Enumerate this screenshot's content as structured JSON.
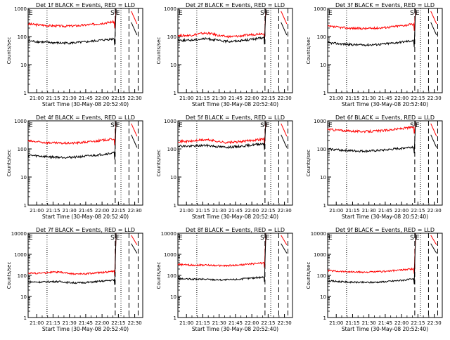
{
  "chart_data": [
    {
      "type": "line",
      "title": "Det 1f BLACK = Events, RED = LLD",
      "xlabel": "Start Time (30-May-08 20:52:40)",
      "ylabel": "Counts/sec",
      "yscale": "log",
      "ylim": [
        1,
        1000
      ],
      "yticks": [
        "1",
        "10",
        "100",
        "1000"
      ],
      "xticks": [
        "21:00",
        "21:15",
        "21:30",
        "21:45",
        "22:00",
        "22:15",
        "22:30"
      ],
      "markers": [
        "S",
        "E"
      ],
      "series": [
        {
          "name": "LLD",
          "color": "#ff0000",
          "level": 280,
          "bump": 1.0
        },
        {
          "name": "Events",
          "color": "#000000",
          "level": 70,
          "bump": 1.0
        }
      ]
    },
    {
      "type": "line",
      "title": "Det 2f BLACK = Events, RED = LLD",
      "xlabel": "Start Time (30-May-08 20:52:40)",
      "ylabel": "Counts/sec",
      "yscale": "log",
      "ylim": [
        1,
        1000
      ],
      "yticks": [
        "1",
        "10",
        "100",
        "1000"
      ],
      "xticks": [
        "21:00",
        "21:15",
        "21:30",
        "21:45",
        "22:00",
        "22:15",
        "22:30"
      ],
      "markers": [
        "S",
        "E"
      ],
      "series": [
        {
          "name": "LLD",
          "color": "#ff0000",
          "level": 110,
          "bump": 1.4
        },
        {
          "name": "Events",
          "color": "#000000",
          "level": 75,
          "bump": 1.3
        }
      ]
    },
    {
      "type": "line",
      "title": "Det 3f BLACK = Events, RED = LLD",
      "xlabel": "Start Time (30-May-08 20:52:40)",
      "ylabel": "Counts/sec",
      "yscale": "log",
      "ylim": [
        1,
        1000
      ],
      "yticks": [
        "1",
        "10",
        "100",
        "1000"
      ],
      "xticks": [
        "21:00",
        "21:15",
        "21:30",
        "21:45",
        "22:00",
        "22:15",
        "22:30"
      ],
      "markers": [
        "S",
        "E"
      ],
      "series": [
        {
          "name": "LLD",
          "color": "#ff0000",
          "level": 230,
          "bump": 1.0
        },
        {
          "name": "Events",
          "color": "#000000",
          "level": 60,
          "bump": 1.0
        }
      ]
    },
    {
      "type": "line",
      "title": "Det 4f BLACK = Events, RED = LLD",
      "xlabel": "Start Time (30-May-08 20:52:40)",
      "ylabel": "Counts/sec",
      "yscale": "log",
      "ylim": [
        1,
        1000
      ],
      "yticks": [
        "1",
        "10",
        "100",
        "1000"
      ],
      "xticks": [
        "21:00",
        "21:15",
        "21:30",
        "21:45",
        "22:00",
        "22:15",
        "22:30"
      ],
      "markers": [
        "S",
        "E"
      ],
      "series": [
        {
          "name": "LLD",
          "color": "#ff0000",
          "level": 190,
          "bump": 1.0
        },
        {
          "name": "Events",
          "color": "#000000",
          "level": 60,
          "bump": 1.0
        }
      ]
    },
    {
      "type": "line",
      "title": "Det 5f BLACK = Events, RED = LLD",
      "xlabel": "Start Time (30-May-08 20:52:40)",
      "ylabel": "Counts/sec",
      "yscale": "log",
      "ylim": [
        1,
        1000
      ],
      "yticks": [
        "1",
        "10",
        "100",
        "1000"
      ],
      "xticks": [
        "21:00",
        "21:15",
        "21:30",
        "21:45",
        "22:00",
        "22:15",
        "22:30"
      ],
      "markers": [
        "S",
        "E"
      ],
      "series": [
        {
          "name": "LLD",
          "color": "#ff0000",
          "level": 190,
          "bump": 1.3
        },
        {
          "name": "Events",
          "color": "#000000",
          "level": 130,
          "bump": 1.2
        }
      ]
    },
    {
      "type": "line",
      "title": "Det 6f BLACK = Events, RED = LLD",
      "xlabel": "Start Time (30-May-08 20:52:40)",
      "ylabel": "Counts/sec",
      "yscale": "log",
      "ylim": [
        1,
        1000
      ],
      "yticks": [
        "1",
        "10",
        "100",
        "1000"
      ],
      "xticks": [
        "21:00",
        "21:15",
        "21:30",
        "21:45",
        "22:00",
        "22:15",
        "22:30"
      ],
      "markers": [
        "S",
        "E"
      ],
      "series": [
        {
          "name": "LLD",
          "color": "#ff0000",
          "level": 500,
          "bump": 1.0
        },
        {
          "name": "Events",
          "color": "#000000",
          "level": 100,
          "bump": 1.0
        }
      ]
    },
    {
      "type": "line",
      "title": "Det 7f BLACK = Events, RED = LLD",
      "xlabel": "Start Time (30-May-08 20:52:40)",
      "ylabel": "Counts/sec",
      "yscale": "log",
      "ylim": [
        1,
        10000
      ],
      "yticks": [
        "1",
        "10",
        "100",
        "1000",
        "10000"
      ],
      "xticks": [
        "21:00",
        "21:15",
        "21:30",
        "21:45",
        "22:00",
        "22:15",
        "22:30"
      ],
      "markers": [
        "S",
        "E"
      ],
      "series": [
        {
          "name": "LLD",
          "color": "#ff0000",
          "level": 130,
          "bump": 1.3
        },
        {
          "name": "Events",
          "color": "#000000",
          "level": 50,
          "bump": 1.2
        }
      ]
    },
    {
      "type": "line",
      "title": "Det 8f BLACK = Events, RED = LLD",
      "xlabel": "Start Time (30-May-08 20:52:40)",
      "ylabel": "Counts/sec",
      "yscale": "log",
      "ylim": [
        1,
        10000
      ],
      "yticks": [
        "1",
        "10",
        "100",
        "1000",
        "10000"
      ],
      "xticks": [
        "21:00",
        "21:15",
        "21:30",
        "21:45",
        "22:00",
        "22:15",
        "22:30"
      ],
      "markers": [
        "S",
        "E"
      ],
      "series": [
        {
          "name": "LLD",
          "color": "#ff0000",
          "level": 330,
          "bump": 1.1
        },
        {
          "name": "Events",
          "color": "#000000",
          "level": 70,
          "bump": 1.1
        }
      ]
    },
    {
      "type": "line",
      "title": "Det 9f BLACK = Events, RED = LLD",
      "xlabel": "Start Time (30-May-08 20:52:40)",
      "ylabel": "Counts/sec",
      "yscale": "log",
      "ylim": [
        1,
        10000
      ],
      "yticks": [
        "1",
        "10",
        "100",
        "1000",
        "10000"
      ],
      "xticks": [
        "21:00",
        "21:15",
        "21:30",
        "21:45",
        "22:00",
        "22:15",
        "22:30"
      ],
      "markers": [
        "S",
        "E"
      ],
      "series": [
        {
          "name": "LLD",
          "color": "#ff0000",
          "level": 170,
          "bump": 1.0
        },
        {
          "name": "Events",
          "color": "#000000",
          "level": 55,
          "bump": 1.0
        }
      ]
    }
  ]
}
